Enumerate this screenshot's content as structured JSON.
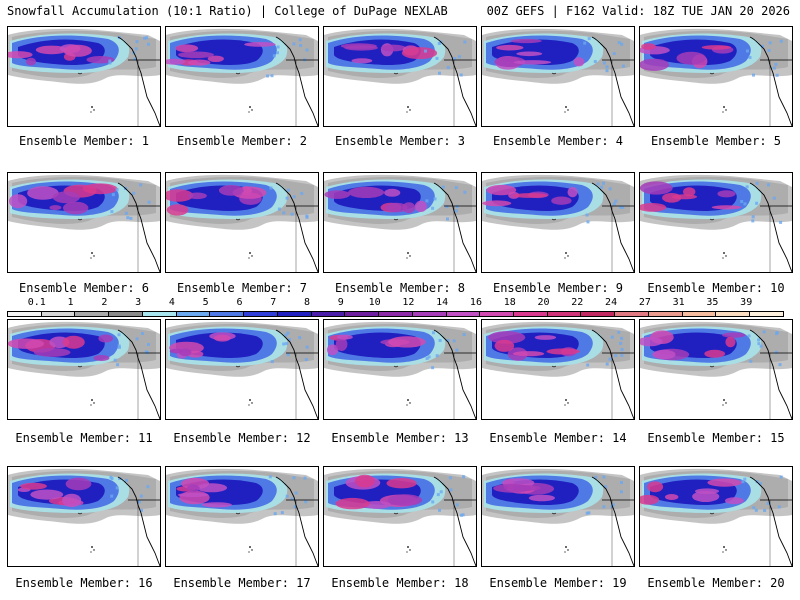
{
  "header": {
    "title": "Snowfall Accumulation (10:1 Ratio) | College of DuPage NEXLAB",
    "run_info": "00Z GEFS | F162 Valid: 18Z TUE JAN 20 2026"
  },
  "panels": [
    {
      "label": "Ensemble Member: 1"
    },
    {
      "label": "Ensemble Member: 2"
    },
    {
      "label": "Ensemble Member: 3"
    },
    {
      "label": "Ensemble Member: 4"
    },
    {
      "label": "Ensemble Member: 5"
    },
    {
      "label": "Ensemble Member: 6"
    },
    {
      "label": "Ensemble Member: 7"
    },
    {
      "label": "Ensemble Member: 8"
    },
    {
      "label": "Ensemble Member: 9"
    },
    {
      "label": "Ensemble Member: 10"
    },
    {
      "label": "Ensemble Member: 11"
    },
    {
      "label": "Ensemble Member: 12"
    },
    {
      "label": "Ensemble Member: 13"
    },
    {
      "label": "Ensemble Member: 14"
    },
    {
      "label": "Ensemble Member: 15"
    },
    {
      "label": "Ensemble Member: 16"
    },
    {
      "label": "Ensemble Member: 17"
    },
    {
      "label": "Ensemble Member: 18"
    },
    {
      "label": "Ensemble Member: 19"
    },
    {
      "label": "Ensemble Member: 20"
    }
  ],
  "colorbar": {
    "labels": [
      "0.1",
      "1",
      "2",
      "3",
      "4",
      "5",
      "6",
      "7",
      "8",
      "9",
      "10",
      "12",
      "14",
      "16",
      "18",
      "20",
      "22",
      "24",
      "27",
      "31",
      "35",
      "39"
    ],
    "colors": [
      "#f4f4f4",
      "#d6d6d6",
      "#a9a9a9",
      "#8a8a8a",
      "#a8e6ef",
      "#6aa8f0",
      "#4f7ae6",
      "#2f3fd8",
      "#2020c0",
      "#4a1ea8",
      "#6d1fa0",
      "#8c2aa8",
      "#a63cb8",
      "#c050c4",
      "#d24ab0",
      "#d93a8e",
      "#cf3478",
      "#c02a60",
      "#e07a82",
      "#eb9a8e",
      "#f4bb9e",
      "#f9dcc0",
      "#fdf0dc"
    ]
  }
}
